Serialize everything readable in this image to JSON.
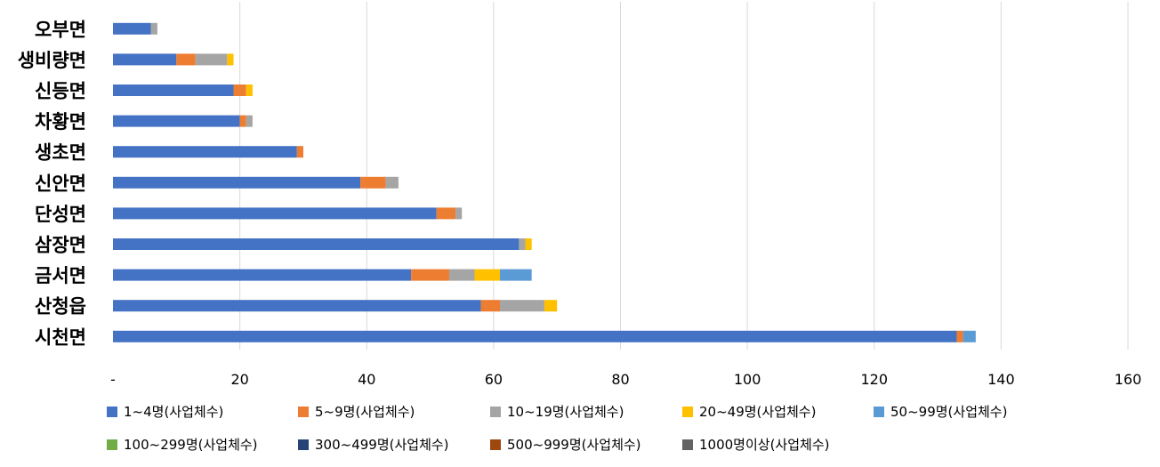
{
  "chart_data": {
    "type": "bar",
    "orientation": "horizontal",
    "stacked": true,
    "categories": [
      "오부면",
      "생비량면",
      "신등면",
      "차황면",
      "생초면",
      "신안면",
      "단성면",
      "삼장면",
      "금서면",
      "산청읍",
      "시천면"
    ],
    "xlim": [
      0,
      160
    ],
    "x_ticks": [
      "-",
      "20",
      "40",
      "60",
      "80",
      "100",
      "120",
      "140",
      "160"
    ],
    "x_tick_values": [
      0,
      20,
      40,
      60,
      80,
      100,
      120,
      140,
      160
    ],
    "grid": "vertical",
    "legend_position": "bottom",
    "series": [
      {
        "name": "1~4명(사업체수)",
        "color": "#4472C4",
        "values": [
          6,
          10,
          19,
          20,
          29,
          39,
          51,
          64,
          47,
          58,
          133
        ]
      },
      {
        "name": "5~9명(사업체수)",
        "color": "#ED7D31",
        "values": [
          0,
          3,
          2,
          1,
          1,
          4,
          3,
          0,
          6,
          3,
          1
        ]
      },
      {
        "name": "10~19명(사업체수)",
        "color": "#A5A5A5",
        "values": [
          1,
          5,
          0,
          1,
          0,
          2,
          1,
          1,
          4,
          7,
          0
        ]
      },
      {
        "name": "20~49명(사업체수)",
        "color": "#FFC000",
        "values": [
          0,
          1,
          1,
          0,
          0,
          0,
          0,
          1,
          4,
          2,
          0
        ]
      },
      {
        "name": "50~99명(사업체수)",
        "color": "#5B9BD5",
        "values": [
          0,
          0,
          0,
          0,
          0,
          0,
          0,
          0,
          5,
          0,
          2
        ]
      },
      {
        "name": "100~299명(사업체수)",
        "color": "#70AD47",
        "values": [
          0,
          0,
          0,
          0,
          0,
          0,
          0,
          0,
          0,
          0,
          0
        ]
      },
      {
        "name": "300~499명(사업체수)",
        "color": "#264478",
        "values": [
          0,
          0,
          0,
          0,
          0,
          0,
          0,
          0,
          0,
          0,
          0
        ]
      },
      {
        "name": "500~999명(사업체수)",
        "color": "#9E480E",
        "values": [
          0,
          0,
          0,
          0,
          0,
          0,
          0,
          0,
          0,
          0,
          0
        ]
      },
      {
        "name": "1000명이상(사업체수)",
        "color": "#636363",
        "values": [
          0,
          0,
          0,
          0,
          0,
          0,
          0,
          0,
          0,
          0,
          0
        ]
      }
    ]
  }
}
